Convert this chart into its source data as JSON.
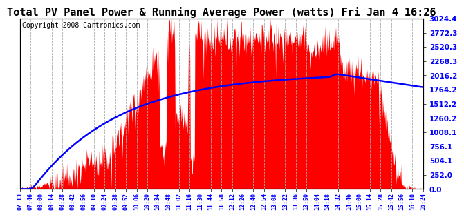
{
  "title": "Total PV Panel Power & Running Average Power (watts) Fri Jan 4 16:26",
  "copyright": "Copyright 2008 Cartronics.com",
  "ylabel_right_ticks": [
    0.0,
    252.0,
    504.1,
    756.1,
    1008.1,
    1260.2,
    1512.2,
    1764.2,
    2016.2,
    2268.3,
    2520.3,
    2772.3,
    3024.4
  ],
  "x_labels": [
    "07:13",
    "07:46",
    "08:00",
    "08:14",
    "08:28",
    "08:42",
    "08:56",
    "09:10",
    "09:24",
    "09:38",
    "09:52",
    "10:06",
    "10:20",
    "10:34",
    "10:48",
    "11:02",
    "11:16",
    "11:30",
    "11:44",
    "11:58",
    "12:12",
    "12:26",
    "12:40",
    "12:54",
    "13:08",
    "13:22",
    "13:36",
    "13:50",
    "14:04",
    "14:18",
    "14:32",
    "14:46",
    "15:00",
    "15:14",
    "15:28",
    "15:42",
    "15:56",
    "16:10",
    "16:24"
  ],
  "bg_color": "#ffffff",
  "fill_color": "#ff0000",
  "line_color": "#0000ff",
  "grid_color": "#aaaaaa",
  "title_fontsize": 11,
  "copyright_fontsize": 7,
  "ymax": 3024.4
}
